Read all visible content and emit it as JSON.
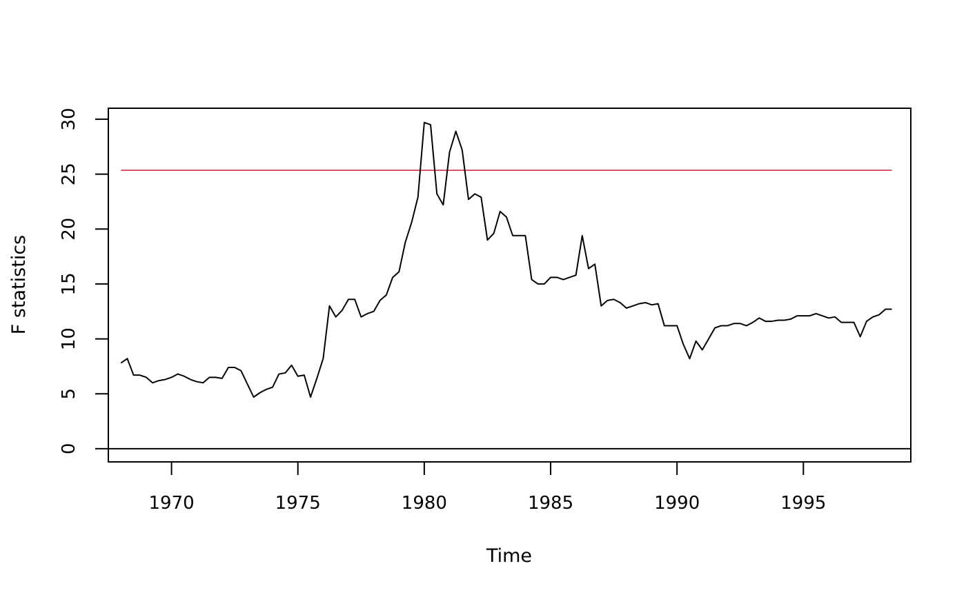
{
  "chart_data": {
    "type": "line",
    "title": "",
    "xlabel": "Time",
    "ylabel": "F statistics",
    "xlim": [
      1967.5,
      1999.25
    ],
    "ylim": [
      -1.2,
      31.0
    ],
    "x_ticks": [
      1970,
      1975,
      1980,
      1985,
      1990,
      1995
    ],
    "y_ticks": [
      0,
      5,
      10,
      15,
      20,
      25,
      30
    ],
    "grid": false,
    "legend": "none",
    "x_start": 1968.0,
    "x_step": 0.25,
    "series": [
      {
        "color": "#000000",
        "values": [
          7.8,
          8.2,
          6.7,
          6.7,
          6.5,
          6.0,
          6.2,
          6.3,
          6.5,
          6.8,
          6.6,
          6.3,
          6.1,
          6.0,
          6.5,
          6.5,
          6.4,
          7.4,
          7.4,
          7.1,
          5.9,
          4.7,
          5.1,
          5.4,
          5.6,
          6.8,
          6.9,
          7.6,
          6.6,
          6.7,
          4.7,
          6.4,
          8.2,
          13.0,
          12.0,
          12.6,
          13.6,
          13.6,
          12.0,
          12.3,
          12.5,
          13.5,
          14.0,
          15.6,
          16.1,
          18.8,
          20.6,
          22.9,
          29.7,
          29.5,
          23.2,
          22.2,
          27.0,
          28.9,
          27.2,
          22.7,
          23.2,
          22.9,
          19.0,
          19.6,
          21.6,
          21.1,
          19.4,
          19.4,
          19.4,
          15.4,
          15.0,
          15.0,
          15.6,
          15.6,
          15.4,
          15.6,
          15.8,
          19.4,
          16.4,
          16.8,
          13.0,
          13.5,
          13.6,
          13.3,
          12.8,
          13.0,
          13.2,
          13.3,
          13.1,
          13.2,
          11.2,
          11.2,
          11.2,
          9.5,
          8.2,
          9.8,
          9.0,
          10.0,
          11.0,
          11.2,
          11.2,
          11.4,
          11.4,
          11.2,
          11.5,
          11.9,
          11.6,
          11.6,
          11.7,
          11.7,
          11.8,
          12.1,
          12.1,
          12.1,
          12.3,
          12.1,
          11.9,
          12.0,
          11.5,
          11.5,
          11.5,
          10.2,
          11.6,
          12.0,
          12.2,
          12.7,
          12.7
        ]
      }
    ],
    "critical_value": {
      "value": 25.35,
      "color": "#DF536B",
      "x_range": [
        1968.0,
        1998.5
      ]
    },
    "reference_line": {
      "value": 0,
      "color": "#000000"
    }
  }
}
